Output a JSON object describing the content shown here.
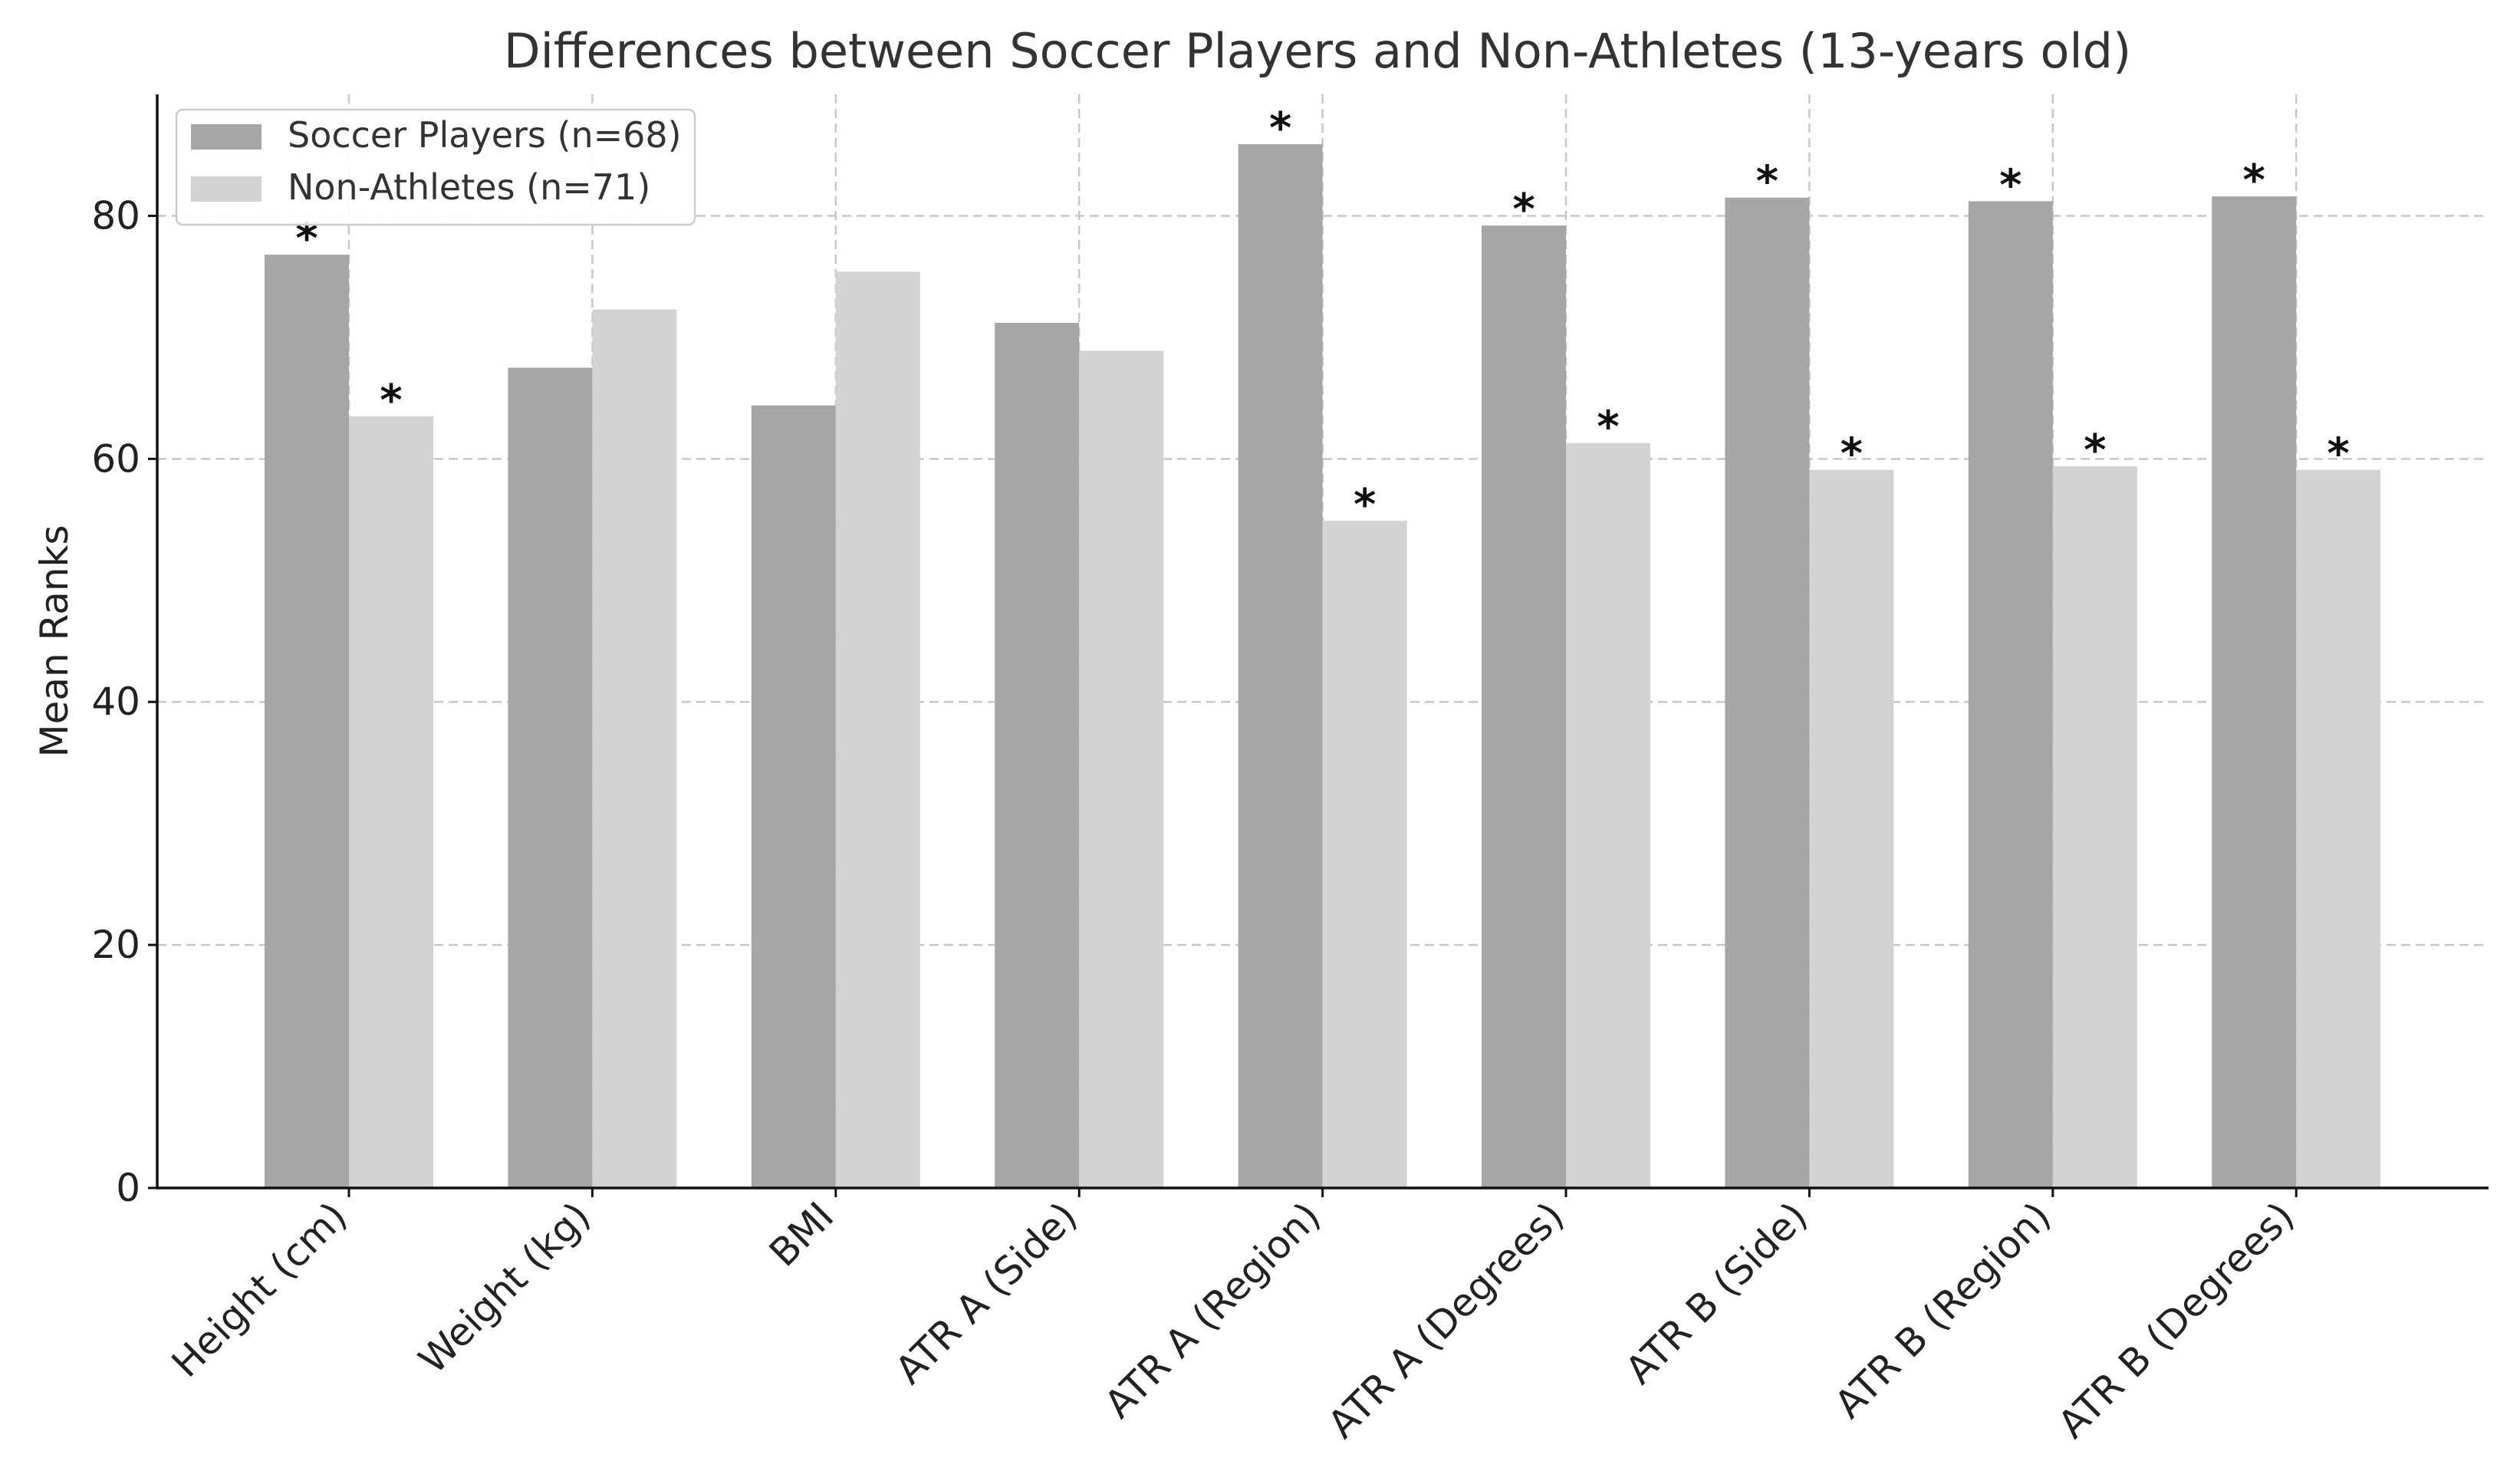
{
  "chart_data": {
    "type": "bar",
    "title": "Differences between Soccer Players and Non-Athletes (13-years old)",
    "xlabel": "",
    "ylabel": "Mean Ranks",
    "ylim": [
      0,
      90
    ],
    "yticks": [
      0,
      20,
      40,
      60,
      80
    ],
    "grid": true,
    "legend_position": "top-left",
    "categories": [
      "Height (cm)",
      "Weight (kg)",
      "BMI",
      "ATR A (Side)",
      "ATR A (Region)",
      "ATR A (Degrees)",
      "ATR B (Side)",
      "ATR B (Region)",
      "ATR B (Degrees)"
    ],
    "series": [
      {
        "name": "Soccer Players (n=68)",
        "color": "#a6a6a6",
        "values": [
          76.8,
          67.5,
          64.4,
          71.2,
          85.9,
          79.2,
          81.5,
          81.2,
          81.6
        ],
        "significant": [
          true,
          false,
          false,
          false,
          true,
          true,
          true,
          true,
          true
        ]
      },
      {
        "name": "Non-Athletes (n=71)",
        "color": "#d3d3d3",
        "values": [
          63.5,
          72.3,
          75.4,
          68.9,
          54.9,
          61.3,
          59.1,
          59.4,
          59.1
        ],
        "significant": [
          true,
          false,
          false,
          false,
          true,
          true,
          true,
          true,
          true
        ]
      }
    ],
    "significance_marker": "*"
  }
}
